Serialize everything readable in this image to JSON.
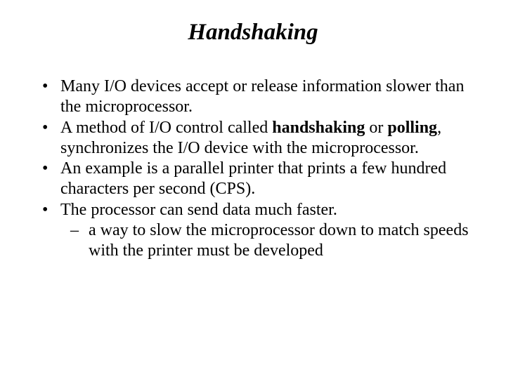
{
  "title": "Handshaking",
  "bullets": {
    "b1": "Many I/O devices accept or release information slower than the microprocessor.",
    "b2_pre": "A method of I/O control called ",
    "b2_bold1": "handshaking",
    "b2_mid": " or ",
    "b2_bold2": "polling",
    "b2_post": ", synchronizes the I/O device with the microprocessor.",
    "b3": "An example is a parallel printer that prints a few hundred characters per second (CPS).",
    "b4": "The processor can send data much faster.",
    "b4_sub1": "a way to slow the microprocessor down to match speeds with the printer must be developed"
  }
}
